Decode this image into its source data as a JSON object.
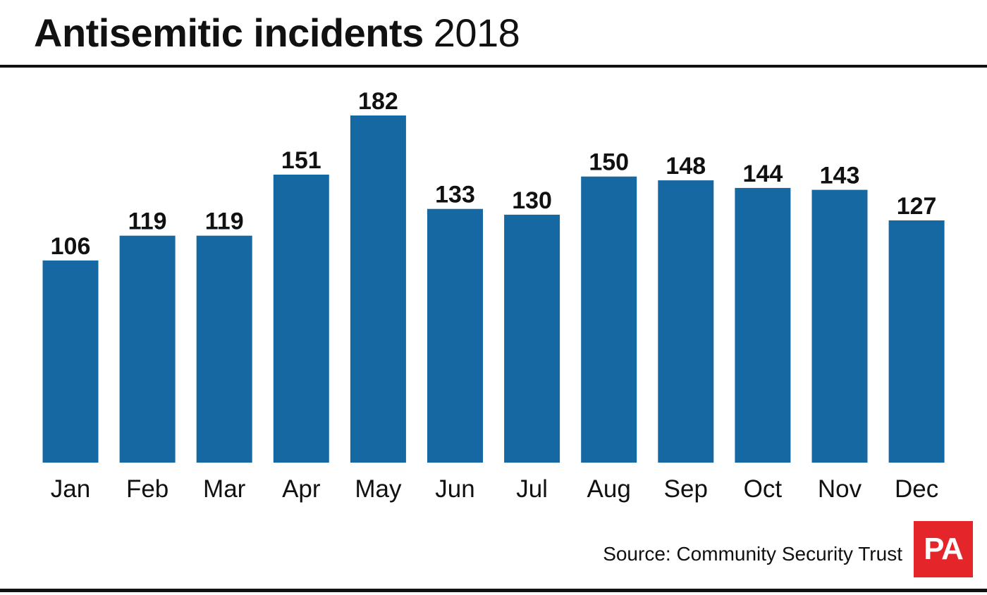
{
  "header": {
    "title": "Antisemitic incidents",
    "year": "2018"
  },
  "footer": {
    "source": "Source: Community Security Trust",
    "logo_text": "PA"
  },
  "colors": {
    "bar": "#1668a3",
    "text": "#111111",
    "logo_bg": "#e4262a"
  },
  "chart_data": {
    "type": "bar",
    "title": "Antisemitic incidents 2018",
    "xlabel": "",
    "ylabel": "",
    "categories": [
      "Jan",
      "Feb",
      "Mar",
      "Apr",
      "May",
      "Jun",
      "Jul",
      "Aug",
      "Sep",
      "Oct",
      "Nov",
      "Dec"
    ],
    "values": [
      106,
      119,
      119,
      151,
      182,
      133,
      130,
      150,
      148,
      144,
      143,
      127
    ],
    "ylim": [
      0,
      182
    ],
    "grid": false,
    "legend": "none",
    "data_labels": true
  }
}
